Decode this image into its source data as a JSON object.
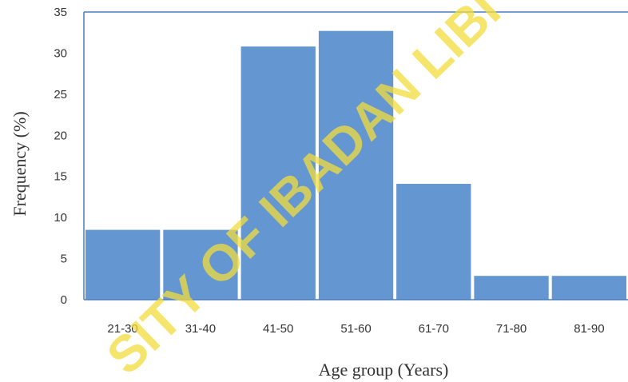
{
  "chart_data": {
    "type": "bar",
    "categories": [
      "21-30",
      "31-40",
      "41-50",
      "51-60",
      "61-70",
      "71-80",
      "81-90"
    ],
    "values": [
      8.5,
      8.5,
      30.8,
      32.7,
      14.1,
      2.9,
      2.9
    ],
    "title": "",
    "xlabel": "Age group (Years)",
    "ylabel": "Frequency (%)",
    "ylim": [
      0,
      35
    ],
    "yticks": [
      0,
      5,
      10,
      15,
      20,
      25,
      30,
      35
    ],
    "grid": false,
    "legend": "none",
    "colors": {
      "bar": "#6496d2",
      "axis_frame": "#4a7cc0",
      "watermark": "#f2dc3c"
    }
  },
  "watermark": {
    "text": "SITY OF IBADAN LIBI"
  }
}
